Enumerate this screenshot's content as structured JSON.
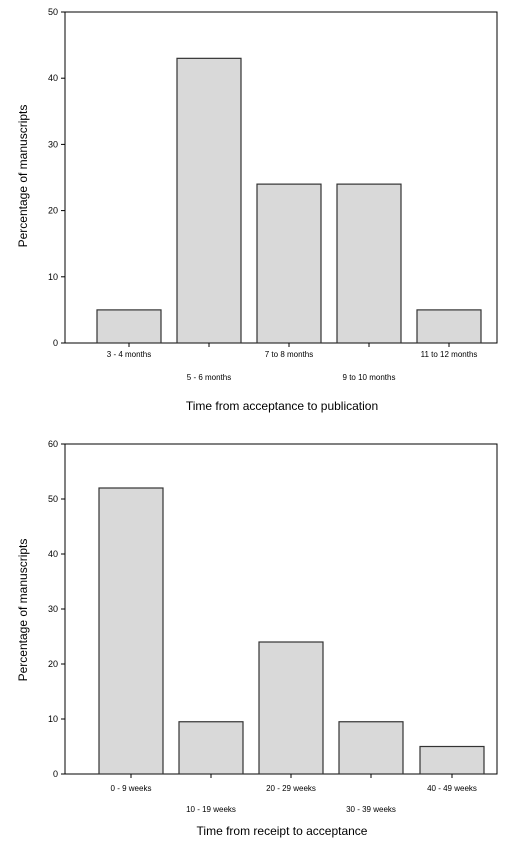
{
  "chart_data": [
    {
      "type": "bar",
      "title": "",
      "xlabel": "Time from acceptance to publication",
      "ylabel": "Percentage of manuscripts",
      "ylim": [
        0,
        50
      ],
      "yticks": [
        0,
        10,
        20,
        30,
        40,
        50
      ],
      "categories": [
        "3 - 4 months",
        "5 - 6 months",
        "7 to 8 months",
        "9 to 10 months",
        "11 to 12 months"
      ],
      "values": [
        5,
        43,
        24,
        24,
        5
      ],
      "bar_color": "#d9d9d9",
      "grid": false
    },
    {
      "type": "bar",
      "title": "",
      "xlabel": "Time from receipt to acceptance",
      "ylabel": "Percentage of manuscripts",
      "ylim": [
        0,
        60
      ],
      "yticks": [
        0,
        10,
        20,
        30,
        40,
        50,
        60
      ],
      "categories": [
        "0 - 9 weeks",
        "10 - 19 weeks",
        "20 - 29 weeks",
        "30 - 39 weeks",
        "40 - 49 weeks"
      ],
      "values": [
        52,
        9.5,
        24,
        9.5,
        5
      ],
      "bar_color": "#d9d9d9",
      "grid": false
    }
  ]
}
